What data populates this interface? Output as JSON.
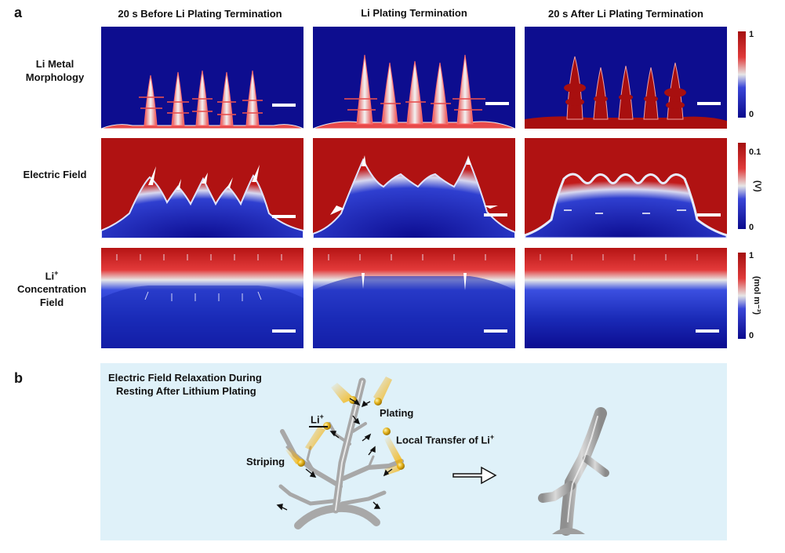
{
  "panel_a": {
    "letter": "a",
    "columns": [
      "20 s Before Li Plating Termination",
      "Li Plating Termination",
      "20 s After Li Plating Termination"
    ],
    "rows": [
      {
        "label": "Li Metal Morphology",
        "label_line1": "Li Metal",
        "label_line2": "Morphology",
        "cbar_max": "1",
        "cbar_min": "0",
        "unit": ""
      },
      {
        "label": "Electric Field",
        "label_line1": "Electric Field",
        "label_line2": "",
        "cbar_max": "0.1",
        "cbar_min": "0",
        "unit": "(V)"
      },
      {
        "label": "Li+ Concentration Field",
        "label_line1a": "Li",
        "label_line1sup": "+",
        "label_line2": "Concentration",
        "label_line3": "Field",
        "cbar_max": "1",
        "cbar_min": "0",
        "unit": "(mol m⁻³)"
      }
    ],
    "colors": {
      "low": "#0a0a8c",
      "mid": "#e6e6e6",
      "high": "#a50f0f"
    }
  },
  "panel_b": {
    "letter": "b",
    "title_line1": "Electric Field Relaxation During",
    "title_line2": "Resting After Lithium Plating",
    "li_label": "Li",
    "li_sup": "+",
    "plating_label": "Plating",
    "local_transfer_label": "Local Transfer of Li",
    "local_transfer_sup": "+",
    "striping_label": "Striping",
    "background_color": "#dff1f9"
  }
}
